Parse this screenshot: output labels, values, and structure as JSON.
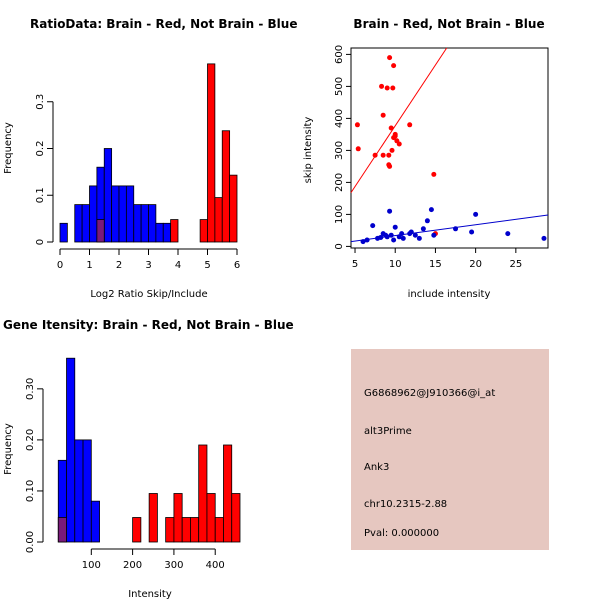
{
  "chart_data": [
    {
      "type": "bar",
      "title": "RatioData: Brain - Red, Not Brain - Blue",
      "xlabel": "Log2 Ratio Skip/Include",
      "ylabel": "Frequency",
      "xlim": [
        0,
        6
      ],
      "ylim": [
        0,
        0.4
      ],
      "xticks": [
        0,
        1,
        2,
        3,
        4,
        5,
        6
      ],
      "yticks": [
        0,
        0.1,
        0.2,
        0.3
      ],
      "bin_width": 0.25,
      "series": [
        {
          "name": "Not Brain",
          "color": "#0000ff",
          "bins": [
            [
              0,
              0.04
            ],
            [
              0.5,
              0.08
            ],
            [
              0.75,
              0.08
            ],
            [
              1,
              0.12
            ],
            [
              1.25,
              0.16
            ],
            [
              1.5,
              0.2
            ],
            [
              1.75,
              0.12
            ],
            [
              2,
              0.12
            ],
            [
              2.25,
              0.12
            ],
            [
              2.5,
              0.08
            ],
            [
              2.75,
              0.08
            ],
            [
              3,
              0.08
            ],
            [
              3.25,
              0.04
            ],
            [
              3.5,
              0.04
            ]
          ]
        },
        {
          "name": "Brain",
          "color": "#ff0000",
          "bins": [
            [
              1.25,
              0.048
            ],
            [
              3.75,
              0.048
            ],
            [
              4.75,
              0.048
            ],
            [
              5,
              0.381
            ],
            [
              5.25,
              0.095
            ],
            [
              5.5,
              0.238
            ],
            [
              5.75,
              0.143
            ]
          ]
        }
      ],
      "overlap_color": "#7a1a7a"
    },
    {
      "type": "scatter",
      "title": "Brain - Red, Not Brain - Blue",
      "xlabel": "include intensity",
      "ylabel": "skip intensity",
      "xlim": [
        4.5,
        29
      ],
      "ylim": [
        -5,
        620
      ],
      "xticks": [
        5,
        10,
        15,
        20,
        25
      ],
      "yticks": [
        0,
        100,
        200,
        300,
        400,
        500,
        600
      ],
      "series": [
        {
          "name": "Brain",
          "color": "#ff0000",
          "points": [
            [
              5.3,
              380
            ],
            [
              5.4,
              305
            ],
            [
              7.5,
              285
            ],
            [
              8.3,
              500
            ],
            [
              8.5,
              410
            ],
            [
              9,
              495
            ],
            [
              9.3,
              590
            ],
            [
              9.8,
              565
            ],
            [
              9.7,
              495
            ],
            [
              8.5,
              285
            ],
            [
              9.2,
              285
            ],
            [
              9.5,
              370
            ],
            [
              9.8,
              340
            ],
            [
              10,
              350
            ],
            [
              10.2,
              330
            ],
            [
              10.5,
              320
            ],
            [
              9.2,
              255
            ],
            [
              9.3,
              250
            ],
            [
              9.6,
              300
            ],
            [
              11.8,
              380
            ],
            [
              14.8,
              225
            ],
            [
              15,
              40
            ],
            [
              10,
              345
            ]
          ],
          "fit_line": [
            [
              4.5,
              168
            ],
            [
              16.4,
              620
            ]
          ]
        },
        {
          "name": "Not Brain",
          "color": "#0000cc",
          "points": [
            [
              6,
              15
            ],
            [
              6.5,
              20
            ],
            [
              7.2,
              65
            ],
            [
              7.8,
              25
            ],
            [
              8.2,
              28
            ],
            [
              8.5,
              40
            ],
            [
              8.8,
              35
            ],
            [
              9,
              30
            ],
            [
              9.3,
              110
            ],
            [
              9.5,
              35
            ],
            [
              9.8,
              20
            ],
            [
              10,
              60
            ],
            [
              10.5,
              30
            ],
            [
              10.8,
              40
            ],
            [
              11,
              25
            ],
            [
              11.8,
              40
            ],
            [
              12.5,
              35
            ],
            [
              13,
              25
            ],
            [
              13.5,
              55
            ],
            [
              14,
              80
            ],
            [
              14.5,
              115
            ],
            [
              14.8,
              35
            ],
            [
              17.5,
              55
            ],
            [
              19.5,
              45
            ],
            [
              20,
              100
            ],
            [
              24,
              40
            ],
            [
              28.5,
              25
            ],
            [
              12,
              45
            ]
          ],
          "fit_line": [
            [
              4.5,
              15
            ],
            [
              29,
              98
            ]
          ]
        }
      ]
    },
    {
      "type": "bar",
      "title": "Gene Itensity: Brain - Red, Not Brain - Blue",
      "xlabel": "Intensity",
      "ylabel": "Frequency",
      "xlim": [
        0,
        460
      ],
      "ylim": [
        0,
        0.38
      ],
      "xticks": [
        100,
        200,
        300,
        400
      ],
      "yticks": [
        0,
        0.1,
        0.2,
        0.3
      ],
      "bin_width": 20,
      "series": [
        {
          "name": "Not Brain",
          "color": "#0000ff",
          "bins": [
            [
              20,
              0.16
            ],
            [
              40,
              0.36
            ],
            [
              60,
              0.2
            ],
            [
              80,
              0.2
            ],
            [
              100,
              0.08
            ]
          ]
        },
        {
          "name": "Brain",
          "color": "#ff0000",
          "bins": [
            [
              20,
              0.048
            ],
            [
              200,
              0.048
            ],
            [
              240,
              0.095
            ],
            [
              280,
              0.048
            ],
            [
              300,
              0.095
            ],
            [
              320,
              0.048
            ],
            [
              340,
              0.048
            ],
            [
              360,
              0.19
            ],
            [
              380,
              0.095
            ],
            [
              400,
              0.048
            ],
            [
              420,
              0.19
            ],
            [
              440,
              0.095
            ]
          ]
        }
      ],
      "overlap_color": "#7a1a7a"
    }
  ],
  "info_panel": {
    "bg_color": "#e6c7c0",
    "probe_id": "G6868962@J910366@i_at",
    "event_type": "alt3Prime",
    "gene": "Ank3",
    "score": "chr10.2315-2.88",
    "pval": "Pval: 0.000000",
    "pval_color": "#cc0000"
  }
}
